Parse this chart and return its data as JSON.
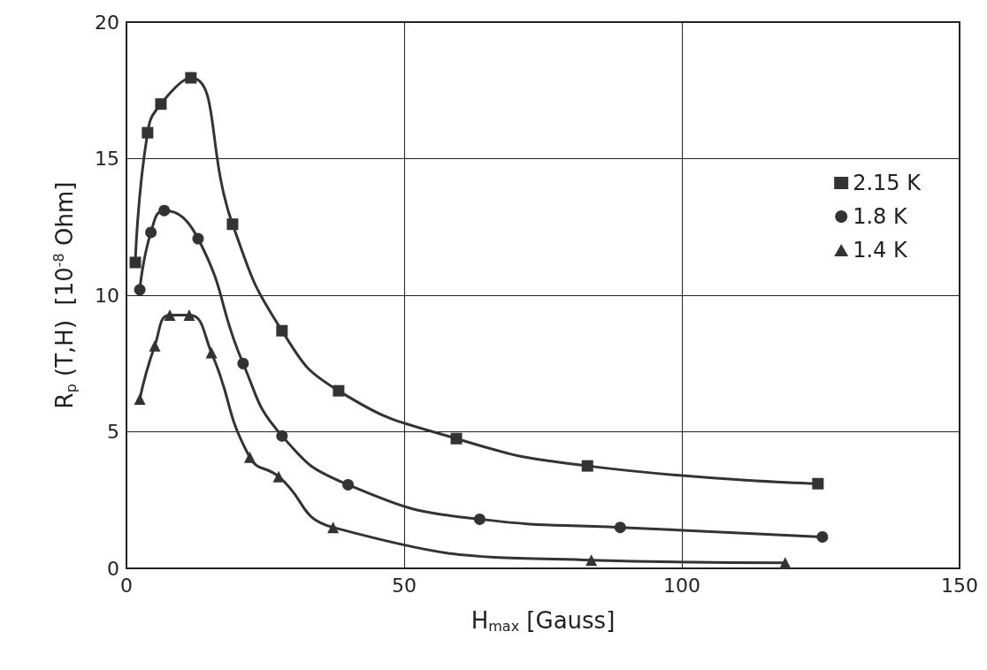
{
  "chart_data": {
    "type": "line",
    "xlabel": "H$_{max}$ [Gauss]",
    "ylabel": "R$_{p}$ (T,H)  [10$^{-8}$ Ohm]",
    "xlim": [
      0,
      150
    ],
    "xticks": [
      0,
      50,
      100,
      150
    ],
    "ylim": [
      0,
      20
    ],
    "yticks": [
      0,
      5,
      10,
      15,
      20
    ],
    "grid": true,
    "legend": "top right",
    "line_style": "solid",
    "series": [
      {
        "name": "2.15 K",
        "color": "#333333",
        "marker": "square",
        "x": [
          1.6,
          3.8,
          6.2,
          11.6,
          19.1,
          28.0,
          38.2,
          59.4,
          83.0,
          124.5
        ],
        "values": [
          11.2,
          15.95,
          17.0,
          17.96,
          12.6,
          8.7,
          6.5,
          4.75,
          3.75,
          3.1
        ]
      },
      {
        "name": "1.8 K",
        "color": "#333333",
        "marker": "circle",
        "x": [
          2.4,
          4.4,
          6.8,
          12.9,
          21.0,
          28.0,
          39.9,
          63.6,
          88.9,
          125.3
        ],
        "values": [
          10.2,
          12.3,
          13.1,
          12.07,
          7.5,
          4.85,
          3.06,
          1.8,
          1.5,
          1.15
        ]
      },
      {
        "name": "1.4 K",
        "color": "#333333",
        "marker": "triangle",
        "x": [
          2.4,
          5.1,
          7.8,
          11.3,
          15.3,
          22.2,
          27.4,
          37.2,
          83.7,
          118.6
        ],
        "values": [
          6.2,
          8.15,
          9.27,
          9.27,
          7.9,
          4.07,
          3.36,
          1.5,
          0.3,
          0.2
        ]
      }
    ]
  }
}
